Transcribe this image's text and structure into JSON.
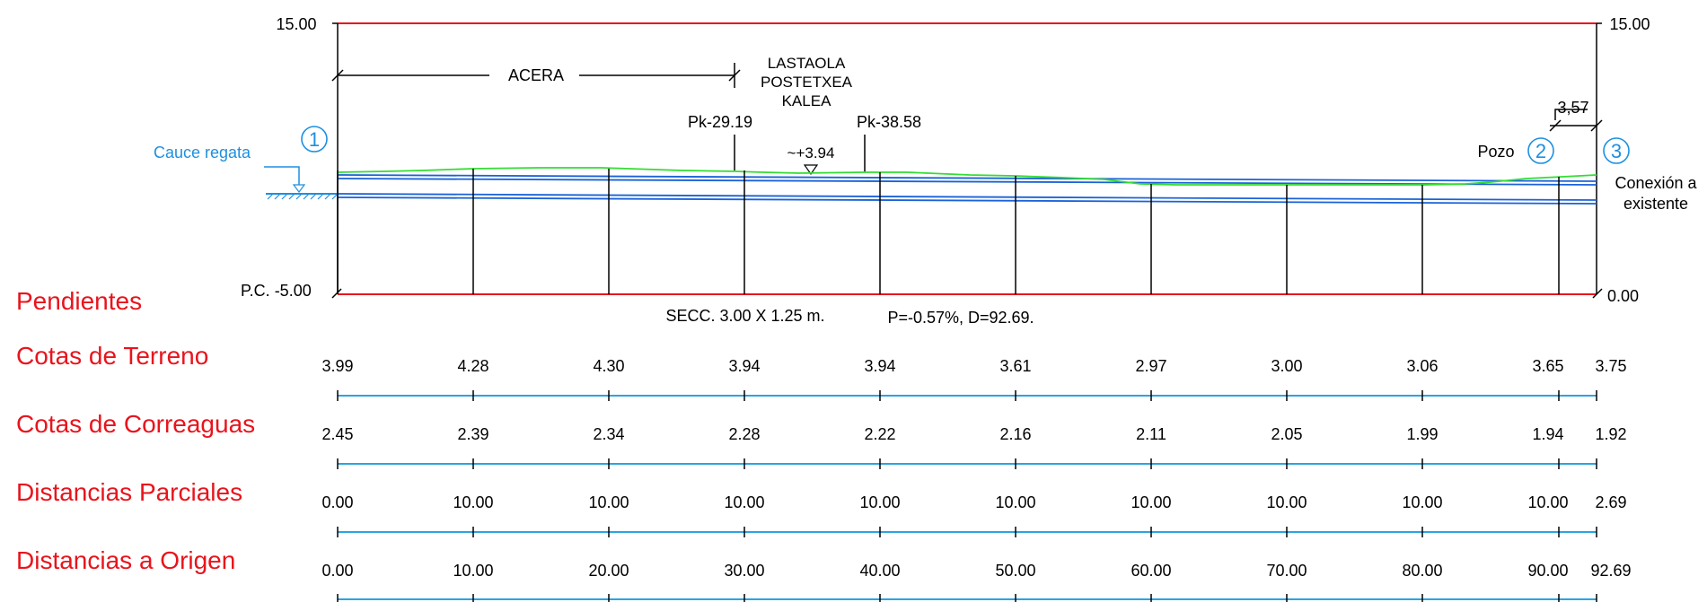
{
  "profile": {
    "scale_labels": {
      "top_left": "15.00",
      "top_right": "15.00",
      "bottom_left": "P.C. -5.00",
      "bottom_right": "0.00"
    },
    "annotations": {
      "acera": "ACERA",
      "street": [
        "LASTAOLA",
        "POSTETXEA",
        "KALEA"
      ],
      "pk_1": "Pk-29.19",
      "pk_2": "Pk-38.58",
      "level_mark": "~+3.94",
      "dimension": "3,57",
      "cauce": "Cauce regata",
      "pozo": "Pozo",
      "conexion": [
        "Conexión a",
        "existente"
      ],
      "section": "SECC. 3.00 X 1.25 m.",
      "slope": "P=-0.57%, D=92.69."
    },
    "markers": [
      "1",
      "2",
      "3"
    ],
    "colors": {
      "frame": "#e8141c",
      "terrain": "#33dd33",
      "pipe": "#1a62d8",
      "label_blue": "#1e8fe0",
      "row_rule": "#29a4e0",
      "text": "#000000"
    }
  },
  "rows": {
    "pendientes": "Pendientes",
    "terreno": {
      "title": "Cotas de Terreno",
      "values": [
        "3.99",
        "4.28",
        "4.30",
        "3.94",
        "3.94",
        "3.61",
        "2.97",
        "3.00",
        "3.06",
        "3.65",
        "3.75"
      ]
    },
    "correaguas": {
      "title": "Cotas de Correaguas",
      "values": [
        "2.45",
        "2.39",
        "2.34",
        "2.28",
        "2.22",
        "2.16",
        "2.11",
        "2.05",
        "1.99",
        "1.94",
        "1.92"
      ]
    },
    "parciales": {
      "title": "Distancias Parciales",
      "values": [
        "0.00",
        "10.00",
        "10.00",
        "10.00",
        "10.00",
        "10.00",
        "10.00",
        "10.00",
        "10.00",
        "10.00",
        "2.69"
      ]
    },
    "origen": {
      "title": "Distancias a Origen",
      "values": [
        "0.00",
        "10.00",
        "20.00",
        "30.00",
        "40.00",
        "50.00",
        "60.00",
        "70.00",
        "80.00",
        "90.00",
        "92.69"
      ]
    }
  }
}
